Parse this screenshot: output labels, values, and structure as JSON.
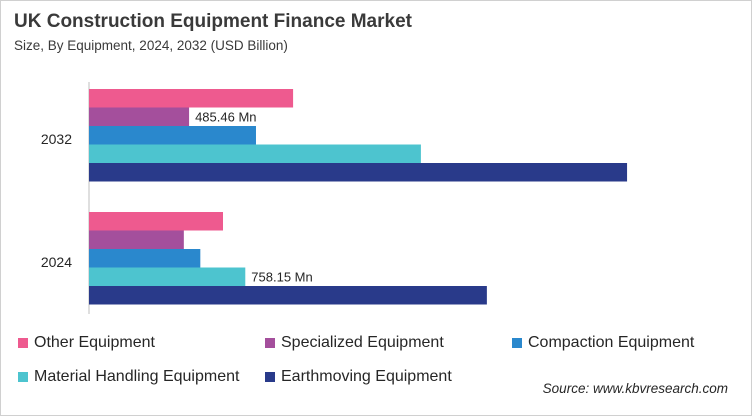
{
  "header": {
    "title": "UK Construction  Equipment Finance Market",
    "subtitle": "Size, By Equipment, 2024, 2032 (USD Billion)"
  },
  "source": "Source: www.kbvresearch.com",
  "chart_data": {
    "type": "bar",
    "orientation": "horizontal",
    "title": "UK Construction  Equipment Finance Market",
    "subtitle": "Size, By Equipment, 2024, 2032 (USD Billion)",
    "categories": [
      "2032",
      "2024"
    ],
    "xlim": [
      0,
      2.6
    ],
    "grid": false,
    "legend_position": "bottom",
    "series": [
      {
        "name": "Other Equipment",
        "color": "#ee5a8f",
        "values": [
          0.99,
          0.65
        ]
      },
      {
        "name": "Specialized Equipment",
        "color": "#a44f9c",
        "values": [
          0.48546,
          0.46
        ]
      },
      {
        "name": "Compaction Equipment",
        "color": "#2a88cd",
        "values": [
          0.81,
          0.54
        ]
      },
      {
        "name": "Material Handling Equipment",
        "color": "#4dc4cf",
        "values": [
          1.61,
          0.75815
        ]
      },
      {
        "name": "Earthmoving Equipment",
        "color": "#293a8a",
        "values": [
          2.61,
          1.93
        ]
      }
    ],
    "annotations": [
      {
        "category": "2032",
        "series": "Specialized Equipment",
        "text": "485.46 Mn"
      },
      {
        "category": "2024",
        "series": "Material Handling Equipment",
        "text": "758.15  Mn"
      }
    ]
  }
}
